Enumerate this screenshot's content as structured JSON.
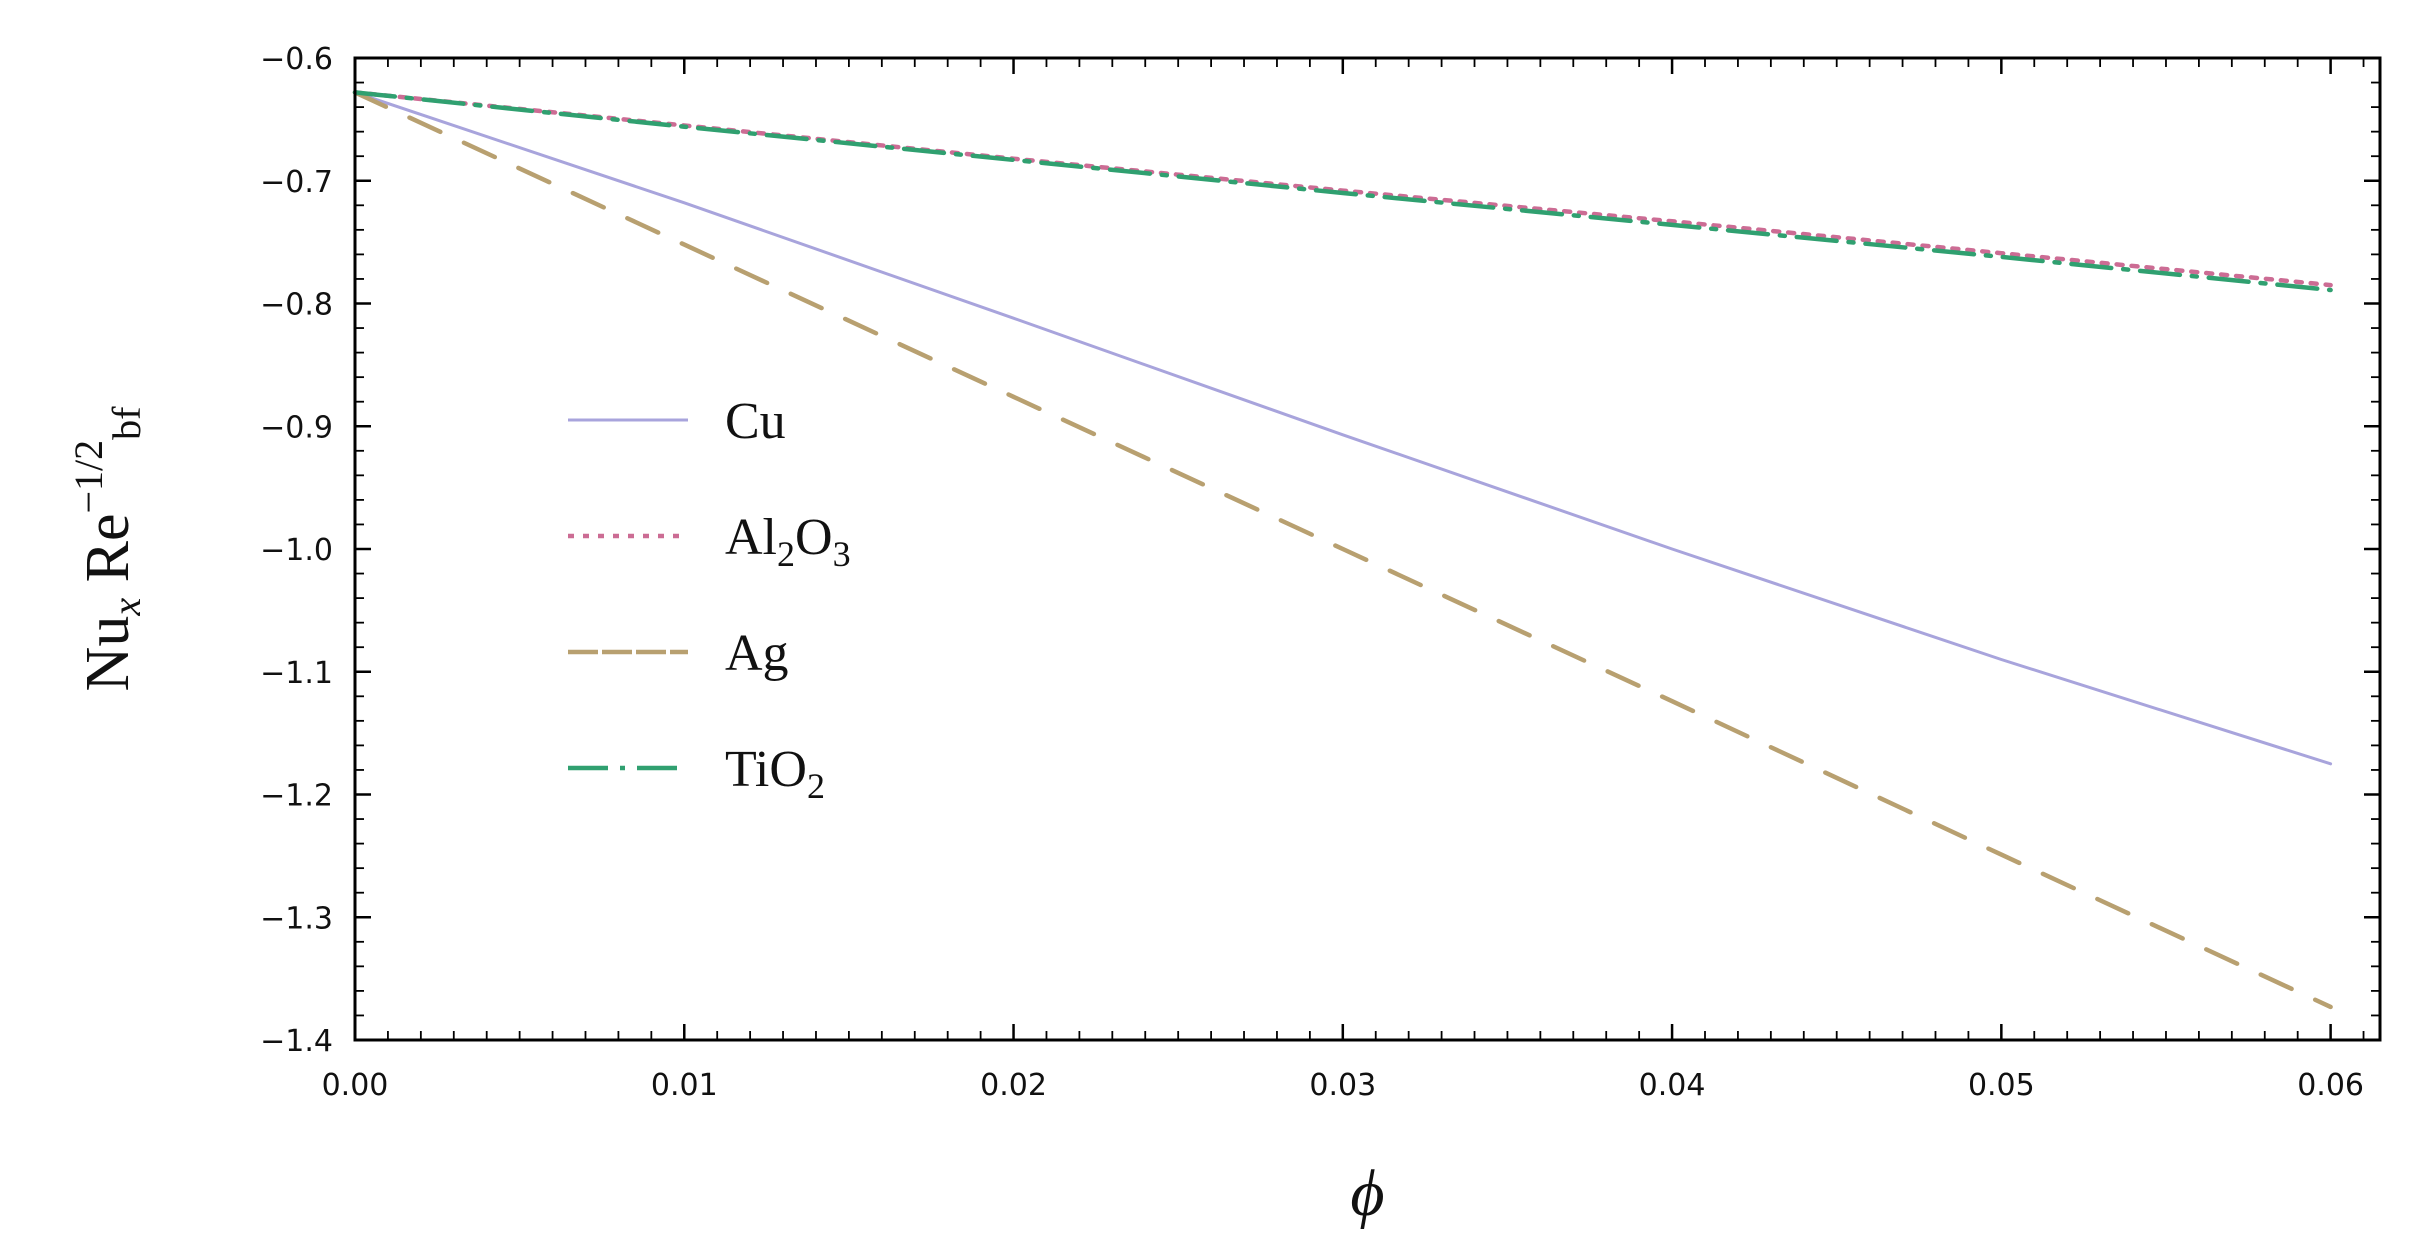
{
  "chart_data": {
    "type": "line",
    "xlabel": "ϕ",
    "ylabel": {
      "main": "Nu",
      "sub": "x",
      "mid": " Re",
      "sup": "−1/2",
      "tail": "bf"
    },
    "xlim": [
      0.0,
      0.0615
    ],
    "ylim": [
      -1.4,
      -0.6
    ],
    "x_ticks": [
      0.0,
      0.01,
      0.02,
      0.03,
      0.04,
      0.05,
      0.06
    ],
    "x_tick_labels": [
      "0.00",
      "0.01",
      "0.02",
      "0.03",
      "0.04",
      "0.05",
      "0.06"
    ],
    "y_ticks": [
      -0.6,
      -0.7,
      -0.8,
      -0.9,
      -1.0,
      -1.1,
      -1.2,
      -1.3,
      -1.4
    ],
    "y_tick_labels": [
      "−0.6",
      "−0.7",
      "−0.8",
      "−0.9",
      "−1.0",
      "−1.1",
      "−1.2",
      "−1.3",
      "−1.4"
    ],
    "grid": false,
    "legend_position": "center-left",
    "series": [
      {
        "name": "Cu",
        "name_parts": [
          {
            "t": "Cu",
            "sub": false
          }
        ],
        "color": "#a8a4dc",
        "style": "solid",
        "x": [
          0.0,
          0.01,
          0.02,
          0.03,
          0.04,
          0.05,
          0.06
        ],
        "y": [
          -0.628,
          -0.718,
          -0.812,
          -0.907,
          -1.0,
          -1.09,
          -1.175
        ]
      },
      {
        "name": "Al2O3",
        "name_parts": [
          {
            "t": "Al",
            "sub": false
          },
          {
            "t": "2",
            "sub": true
          },
          {
            "t": "O",
            "sub": false
          },
          {
            "t": "3",
            "sub": true
          }
        ],
        "color": "#cc6c94",
        "style": "dotted",
        "x": [
          0.0,
          0.01,
          0.02,
          0.03,
          0.04,
          0.05,
          0.06
        ],
        "y": [
          -0.628,
          -0.655,
          -0.682,
          -0.708,
          -0.733,
          -0.759,
          -0.785
        ]
      },
      {
        "name": "Ag",
        "name_parts": [
          {
            "t": "Ag",
            "sub": false
          }
        ],
        "color": "#b8a070",
        "style": "dashed",
        "x": [
          0.0,
          0.01,
          0.02,
          0.03,
          0.04,
          0.05,
          0.06
        ],
        "y": [
          -0.628,
          -0.752,
          -0.876,
          -1.0,
          -1.124,
          -1.249,
          -1.373
        ]
      },
      {
        "name": "TiO2",
        "name_parts": [
          {
            "t": "TiO",
            "sub": false
          },
          {
            "t": "2",
            "sub": true
          }
        ],
        "color": "#30a070",
        "style": "dashdot",
        "x": [
          0.0,
          0.01,
          0.02,
          0.03,
          0.04,
          0.05,
          0.06
        ],
        "y": [
          -0.628,
          -0.656,
          -0.683,
          -0.71,
          -0.736,
          -0.762,
          -0.789
        ]
      }
    ]
  }
}
